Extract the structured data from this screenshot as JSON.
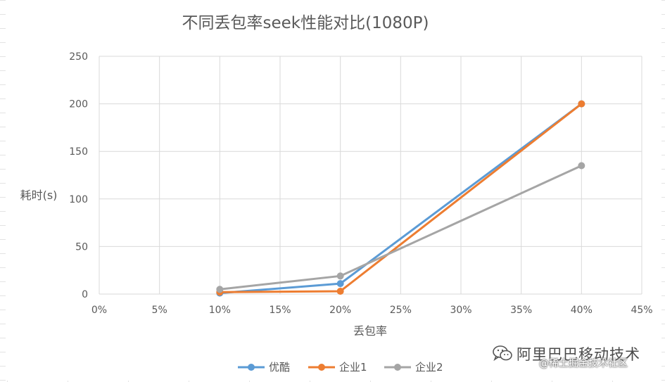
{
  "chart_data": {
    "type": "scatter",
    "title": "不同丢包率seek性能对比(1080P)",
    "xlabel": "丢包率",
    "ylabel": "耗时(s)",
    "x_ticks": [
      "0%",
      "5%",
      "10%",
      "15%",
      "20%",
      "25%",
      "30%",
      "35%",
      "40%",
      "45%"
    ],
    "y_ticks": [
      "0",
      "50",
      "100",
      "150",
      "200",
      "250"
    ],
    "xlim": [
      0,
      45
    ],
    "ylim": [
      0,
      250
    ],
    "grid": true,
    "legend_position": "bottom",
    "markers": true,
    "lines": "straight",
    "series": [
      {
        "name": "优酷",
        "color": "#5b9bd5",
        "points": [
          [
            10,
            1
          ],
          [
            20,
            11
          ],
          [
            40,
            200
          ]
        ]
      },
      {
        "name": "企业1",
        "color": "#ed7d31",
        "points": [
          [
            10,
            2
          ],
          [
            20,
            3
          ],
          [
            40,
            200
          ]
        ]
      },
      {
        "name": "企业2",
        "color": "#a5a5a5",
        "points": [
          [
            10,
            5
          ],
          [
            20,
            19
          ],
          [
            40,
            135
          ]
        ]
      }
    ]
  },
  "watermark": {
    "line1": "阿里巴巴移动技术",
    "line2": "@稀土掘金技术社区"
  }
}
